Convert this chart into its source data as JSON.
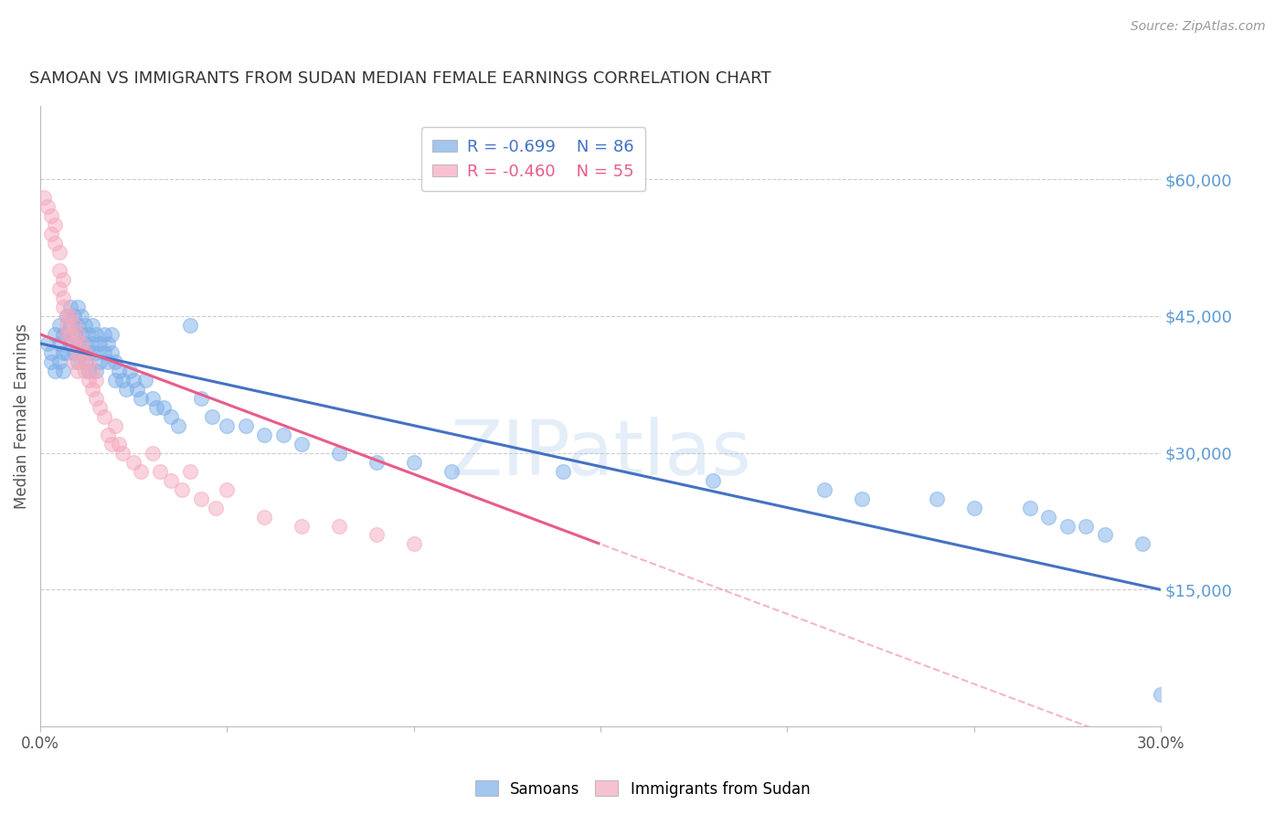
{
  "title": "SAMOAN VS IMMIGRANTS FROM SUDAN MEDIAN FEMALE EARNINGS CORRELATION CHART",
  "source": "Source: ZipAtlas.com",
  "ylabel": "Median Female Earnings",
  "xlim": [
    0.0,
    0.3
  ],
  "ylim": [
    0,
    68000
  ],
  "yticks": [
    15000,
    30000,
    45000,
    60000
  ],
  "ytick_labels": [
    "$15,000",
    "$30,000",
    "$45,000",
    "$60,000"
  ],
  "xticks": [
    0.0,
    0.05,
    0.1,
    0.15,
    0.2,
    0.25,
    0.3
  ],
  "xtick_labels": [
    "0.0%",
    "",
    "",
    "",
    "",
    "",
    "30.0%"
  ],
  "blue_label": "Samoans",
  "pink_label": "Immigrants from Sudan",
  "blue_R": "-0.699",
  "blue_N": "86",
  "pink_R": "-0.460",
  "pink_N": "55",
  "blue_color": "#7BAEE8",
  "pink_color": "#F4A8BC",
  "blue_line_color": "#4472C4",
  "pink_line_color": "#E85C8A",
  "background_color": "#FFFFFF",
  "grid_color": "#CCCCCC",
  "right_label_color": "#5B9BD5",
  "blue_x": [
    0.002,
    0.003,
    0.003,
    0.004,
    0.004,
    0.005,
    0.005,
    0.005,
    0.006,
    0.006,
    0.006,
    0.007,
    0.007,
    0.007,
    0.008,
    0.008,
    0.008,
    0.009,
    0.009,
    0.009,
    0.01,
    0.01,
    0.01,
    0.01,
    0.011,
    0.011,
    0.011,
    0.012,
    0.012,
    0.012,
    0.013,
    0.013,
    0.013,
    0.014,
    0.014,
    0.015,
    0.015,
    0.015,
    0.016,
    0.016,
    0.017,
    0.017,
    0.018,
    0.018,
    0.019,
    0.019,
    0.02,
    0.02,
    0.021,
    0.022,
    0.023,
    0.024,
    0.025,
    0.026,
    0.027,
    0.028,
    0.03,
    0.031,
    0.033,
    0.035,
    0.037,
    0.04,
    0.043,
    0.046,
    0.05,
    0.055,
    0.06,
    0.065,
    0.07,
    0.08,
    0.09,
    0.1,
    0.11,
    0.14,
    0.18,
    0.21,
    0.22,
    0.24,
    0.25,
    0.265,
    0.27,
    0.275,
    0.28,
    0.285,
    0.295,
    0.3
  ],
  "blue_y": [
    42000,
    41000,
    40000,
    43000,
    39000,
    44000,
    42000,
    40000,
    43000,
    41000,
    39000,
    45000,
    43000,
    41000,
    46000,
    44000,
    42000,
    45000,
    43000,
    41000,
    46000,
    44000,
    42000,
    40000,
    45000,
    43000,
    41000,
    44000,
    42000,
    40000,
    43000,
    41000,
    39000,
    44000,
    42000,
    43000,
    41000,
    39000,
    42000,
    40000,
    43000,
    41000,
    42000,
    40000,
    43000,
    41000,
    40000,
    38000,
    39000,
    38000,
    37000,
    39000,
    38000,
    37000,
    36000,
    38000,
    36000,
    35000,
    35000,
    34000,
    33000,
    44000,
    36000,
    34000,
    33000,
    33000,
    32000,
    32000,
    31000,
    30000,
    29000,
    29000,
    28000,
    28000,
    27000,
    26000,
    25000,
    25000,
    24000,
    24000,
    23000,
    22000,
    22000,
    21000,
    20000,
    3500
  ],
  "pink_x": [
    0.001,
    0.002,
    0.003,
    0.003,
    0.004,
    0.004,
    0.005,
    0.005,
    0.005,
    0.006,
    0.006,
    0.006,
    0.007,
    0.007,
    0.007,
    0.008,
    0.008,
    0.009,
    0.009,
    0.009,
    0.01,
    0.01,
    0.01,
    0.011,
    0.011,
    0.012,
    0.012,
    0.013,
    0.013,
    0.014,
    0.014,
    0.015,
    0.015,
    0.016,
    0.017,
    0.018,
    0.019,
    0.02,
    0.021,
    0.022,
    0.025,
    0.027,
    0.03,
    0.032,
    0.035,
    0.038,
    0.04,
    0.043,
    0.047,
    0.05,
    0.06,
    0.07,
    0.08,
    0.09,
    0.1
  ],
  "pink_y": [
    58000,
    57000,
    56000,
    54000,
    53000,
    55000,
    52000,
    50000,
    48000,
    47000,
    49000,
    46000,
    45000,
    44000,
    43000,
    45000,
    43000,
    44000,
    42000,
    40000,
    43000,
    41000,
    39000,
    42000,
    40000,
    41000,
    39000,
    40000,
    38000,
    39000,
    37000,
    38000,
    36000,
    35000,
    34000,
    32000,
    31000,
    33000,
    31000,
    30000,
    29000,
    28000,
    30000,
    28000,
    27000,
    26000,
    28000,
    25000,
    24000,
    26000,
    23000,
    22000,
    22000,
    21000,
    20000
  ]
}
